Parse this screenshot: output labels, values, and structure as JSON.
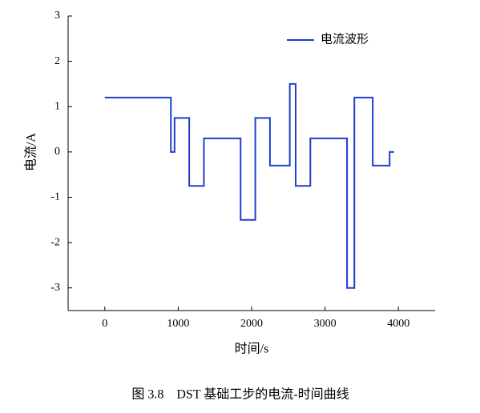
{
  "chart_data": {
    "type": "line",
    "caption": "图 3.8　DST 基础工步的电流-时间曲线",
    "xlabel": "时间/s",
    "ylabel": "电流/A",
    "x": [
      0,
      900,
      900,
      950,
      950,
      1150,
      1150,
      1350,
      1350,
      1850,
      1850,
      2050,
      2050,
      2250,
      2250,
      2520,
      2520,
      2600,
      2600,
      2800,
      2800,
      3300,
      3300,
      3400,
      3400,
      3650,
      3650,
      3880,
      3880,
      3940
    ],
    "series": [
      {
        "name": "电流波形",
        "color": "#1f3fcc",
        "values": [
          1.2,
          1.2,
          0,
          0,
          0.75,
          0.75,
          -0.75,
          -0.75,
          0.3,
          0.3,
          -1.5,
          -1.5,
          0.75,
          0.75,
          -0.3,
          -0.3,
          1.5,
          1.5,
          -0.75,
          -0.75,
          0.3,
          0.3,
          -3,
          -3,
          1.2,
          1.2,
          -0.3,
          -0.3,
          0,
          0
        ]
      }
    ],
    "xlim": [
      -500,
      4500
    ],
    "ylim": [
      -3.5,
      3
    ],
    "xticks": [
      0,
      1000,
      2000,
      3000,
      4000
    ],
    "yticks": [
      -3,
      -2,
      -1,
      0,
      1,
      2,
      3
    ],
    "legend": "upper right"
  }
}
